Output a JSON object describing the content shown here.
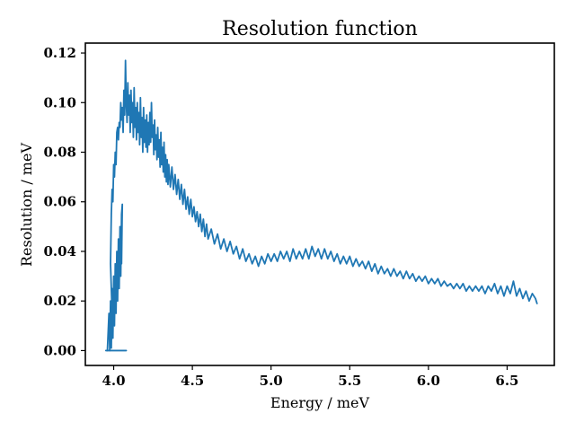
{
  "chart_data": {
    "type": "line",
    "title": "Resolution function",
    "xlabel": "Energy / meV",
    "ylabel": "Resolution / meV",
    "xlim": [
      3.82,
      6.8
    ],
    "ylim": [
      -0.006,
      0.124
    ],
    "xticks": [
      4.0,
      4.5,
      5.0,
      5.5,
      6.0,
      6.5
    ],
    "yticks": [
      0.0,
      0.02,
      0.04,
      0.06,
      0.08,
      0.1,
      0.12
    ],
    "xtick_labels": [
      "4.0",
      "4.5",
      "5.0",
      "5.5",
      "6.0",
      "6.5"
    ],
    "ytick_labels": [
      "0.00",
      "0.02",
      "0.04",
      "0.06",
      "0.08",
      "0.10",
      "0.12"
    ],
    "grid": false,
    "legend": "none",
    "series": [
      {
        "color": "#1f77b4",
        "points": [
          [
            3.96,
            0.0
          ],
          [
            3.97,
            0.015
          ],
          [
            3.975,
            0.0
          ],
          [
            3.98,
            0.02
          ],
          [
            3.985,
            0.001
          ],
          [
            3.99,
            0.025
          ],
          [
            3.995,
            0.005
          ],
          [
            4.0,
            0.03
          ],
          [
            4.005,
            0.01
          ],
          [
            4.01,
            0.035
          ],
          [
            4.015,
            0.015
          ],
          [
            4.02,
            0.04
          ],
          [
            4.025,
            0.02
          ],
          [
            4.03,
            0.045
          ],
          [
            4.035,
            0.025
          ],
          [
            4.04,
            0.05
          ],
          [
            4.045,
            0.03
          ],
          [
            4.05,
            0.055
          ],
          [
            4.055,
            0.059
          ],
          [
            4.05,
            0.035
          ],
          [
            4.04,
            0.04
          ],
          [
            4.02,
            0.03
          ],
          [
            4.0,
            0.02
          ],
          [
            3.99,
            0.015
          ],
          [
            3.98,
            0.035
          ],
          [
            3.985,
            0.055
          ],
          [
            3.99,
            0.065
          ],
          [
            3.995,
            0.06
          ],
          [
            4.0,
            0.075
          ],
          [
            4.005,
            0.07
          ],
          [
            4.01,
            0.08
          ],
          [
            4.015,
            0.075
          ],
          [
            4.02,
            0.088
          ],
          [
            4.025,
            0.09
          ],
          [
            4.03,
            0.085
          ],
          [
            4.035,
            0.092
          ],
          [
            4.04,
            0.09
          ],
          [
            4.045,
            0.1
          ],
          [
            4.05,
            0.093
          ],
          [
            4.055,
            0.098
          ],
          [
            4.06,
            0.088
          ],
          [
            4.065,
            0.105
          ],
          [
            4.07,
            0.095
          ],
          [
            4.075,
            0.117
          ],
          [
            4.08,
            0.1
          ],
          [
            4.085,
            0.092
          ],
          [
            4.09,
            0.108
          ],
          [
            4.095,
            0.095
          ],
          [
            4.1,
            0.103
          ],
          [
            4.105,
            0.088
          ],
          [
            4.11,
            0.105
          ],
          [
            4.115,
            0.092
          ],
          [
            4.12,
            0.1
          ],
          [
            4.125,
            0.086
          ],
          [
            4.13,
            0.106
          ],
          [
            4.135,
            0.09
          ],
          [
            4.14,
            0.098
          ],
          [
            4.145,
            0.085
          ],
          [
            4.15,
            0.1
          ],
          [
            4.155,
            0.088
          ],
          [
            4.16,
            0.096
          ],
          [
            4.165,
            0.083
          ],
          [
            4.17,
            0.102
          ],
          [
            4.175,
            0.086
          ],
          [
            4.18,
            0.094
          ],
          [
            4.185,
            0.08
          ],
          [
            4.19,
            0.098
          ],
          [
            4.195,
            0.084
          ],
          [
            4.2,
            0.093
          ],
          [
            4.205,
            0.082
          ],
          [
            4.21,
            0.095
          ],
          [
            4.215,
            0.08
          ],
          [
            4.22,
            0.092
          ],
          [
            4.225,
            0.083
          ],
          [
            4.23,
            0.096
          ],
          [
            4.235,
            0.084
          ],
          [
            4.24,
            0.1
          ],
          [
            4.245,
            0.086
          ],
          [
            4.25,
            0.091
          ],
          [
            4.255,
            0.079
          ],
          [
            4.26,
            0.093
          ],
          [
            4.265,
            0.081
          ],
          [
            4.27,
            0.087
          ],
          [
            4.275,
            0.077
          ],
          [
            4.28,
            0.09
          ],
          [
            4.285,
            0.078
          ],
          [
            4.29,
            0.085
          ],
          [
            4.295,
            0.074
          ],
          [
            4.3,
            0.088
          ],
          [
            4.305,
            0.075
          ],
          [
            4.31,
            0.082
          ],
          [
            4.315,
            0.072
          ],
          [
            4.32,
            0.084
          ],
          [
            4.325,
            0.07
          ],
          [
            4.33,
            0.079
          ],
          [
            4.335,
            0.068
          ],
          [
            4.34,
            0.077
          ],
          [
            4.345,
            0.067
          ],
          [
            4.35,
            0.075
          ],
          [
            4.36,
            0.066
          ],
          [
            4.37,
            0.074
          ],
          [
            4.38,
            0.065
          ],
          [
            4.39,
            0.071
          ],
          [
            4.4,
            0.063
          ],
          [
            4.41,
            0.069
          ],
          [
            4.42,
            0.061
          ],
          [
            4.43,
            0.067
          ],
          [
            4.44,
            0.059
          ],
          [
            4.45,
            0.065
          ],
          [
            4.46,
            0.057
          ],
          [
            4.47,
            0.062
          ],
          [
            4.48,
            0.055
          ],
          [
            4.49,
            0.061
          ],
          [
            4.5,
            0.054
          ],
          [
            4.51,
            0.058
          ],
          [
            4.52,
            0.052
          ],
          [
            4.53,
            0.056
          ],
          [
            4.54,
            0.05
          ],
          [
            4.55,
            0.055
          ],
          [
            4.56,
            0.048
          ],
          [
            4.57,
            0.053
          ],
          [
            4.58,
            0.046
          ],
          [
            4.59,
            0.051
          ],
          [
            4.6,
            0.045
          ],
          [
            4.62,
            0.049
          ],
          [
            4.64,
            0.043
          ],
          [
            4.66,
            0.047
          ],
          [
            4.68,
            0.041
          ],
          [
            4.7,
            0.045
          ],
          [
            4.72,
            0.04
          ],
          [
            4.74,
            0.044
          ],
          [
            4.76,
            0.039
          ],
          [
            4.78,
            0.042
          ],
          [
            4.8,
            0.037
          ],
          [
            4.82,
            0.041
          ],
          [
            4.84,
            0.036
          ],
          [
            4.86,
            0.039
          ],
          [
            4.88,
            0.035
          ],
          [
            4.9,
            0.038
          ],
          [
            4.92,
            0.034
          ],
          [
            4.94,
            0.038
          ],
          [
            4.96,
            0.035
          ],
          [
            4.98,
            0.039
          ],
          [
            5.0,
            0.036
          ],
          [
            5.02,
            0.039
          ],
          [
            5.04,
            0.036
          ],
          [
            5.06,
            0.04
          ],
          [
            5.08,
            0.037
          ],
          [
            5.1,
            0.04
          ],
          [
            5.12,
            0.036
          ],
          [
            5.14,
            0.041
          ],
          [
            5.16,
            0.037
          ],
          [
            5.18,
            0.04
          ],
          [
            5.2,
            0.037
          ],
          [
            5.22,
            0.041
          ],
          [
            5.24,
            0.037
          ],
          [
            5.26,
            0.042
          ],
          [
            5.28,
            0.038
          ],
          [
            5.3,
            0.041
          ],
          [
            5.32,
            0.037
          ],
          [
            5.34,
            0.041
          ],
          [
            5.36,
            0.037
          ],
          [
            5.38,
            0.04
          ],
          [
            5.4,
            0.036
          ],
          [
            5.42,
            0.039
          ],
          [
            5.44,
            0.035
          ],
          [
            5.46,
            0.038
          ],
          [
            5.48,
            0.035
          ],
          [
            5.5,
            0.038
          ],
          [
            5.52,
            0.034
          ],
          [
            5.54,
            0.037
          ],
          [
            5.56,
            0.034
          ],
          [
            5.58,
            0.036
          ],
          [
            5.6,
            0.033
          ],
          [
            5.62,
            0.036
          ],
          [
            5.64,
            0.032
          ],
          [
            5.66,
            0.035
          ],
          [
            5.68,
            0.031
          ],
          [
            5.7,
            0.034
          ],
          [
            5.72,
            0.031
          ],
          [
            5.74,
            0.033
          ],
          [
            5.76,
            0.03
          ],
          [
            5.78,
            0.033
          ],
          [
            5.8,
            0.03
          ],
          [
            5.82,
            0.032
          ],
          [
            5.84,
            0.029
          ],
          [
            5.86,
            0.032
          ],
          [
            5.88,
            0.029
          ],
          [
            5.9,
            0.031
          ],
          [
            5.92,
            0.028
          ],
          [
            5.94,
            0.03
          ],
          [
            5.96,
            0.028
          ],
          [
            5.98,
            0.03
          ],
          [
            6.0,
            0.027
          ],
          [
            6.02,
            0.029
          ],
          [
            6.04,
            0.027
          ],
          [
            6.06,
            0.029
          ],
          [
            6.08,
            0.026
          ],
          [
            6.1,
            0.028
          ],
          [
            6.12,
            0.026
          ],
          [
            6.14,
            0.027
          ],
          [
            6.16,
            0.025
          ],
          [
            6.18,
            0.027
          ],
          [
            6.2,
            0.025
          ],
          [
            6.22,
            0.027
          ],
          [
            6.24,
            0.024
          ],
          [
            6.26,
            0.026
          ],
          [
            6.28,
            0.024
          ],
          [
            6.3,
            0.026
          ],
          [
            6.32,
            0.024
          ],
          [
            6.34,
            0.026
          ],
          [
            6.36,
            0.023
          ],
          [
            6.38,
            0.026
          ],
          [
            6.4,
            0.024
          ],
          [
            6.42,
            0.027
          ],
          [
            6.44,
            0.023
          ],
          [
            6.46,
            0.026
          ],
          [
            6.48,
            0.022
          ],
          [
            6.5,
            0.026
          ],
          [
            6.52,
            0.023
          ],
          [
            6.54,
            0.028
          ],
          [
            6.56,
            0.022
          ],
          [
            6.58,
            0.025
          ],
          [
            6.6,
            0.021
          ],
          [
            6.62,
            0.024
          ],
          [
            6.64,
            0.02
          ],
          [
            6.66,
            0.023
          ],
          [
            6.68,
            0.021
          ],
          [
            6.69,
            0.019
          ]
        ]
      },
      {
        "color": "#1f77b4",
        "points": [
          [
            3.95,
            0.0
          ],
          [
            4.08,
            0.0
          ]
        ]
      }
    ]
  }
}
